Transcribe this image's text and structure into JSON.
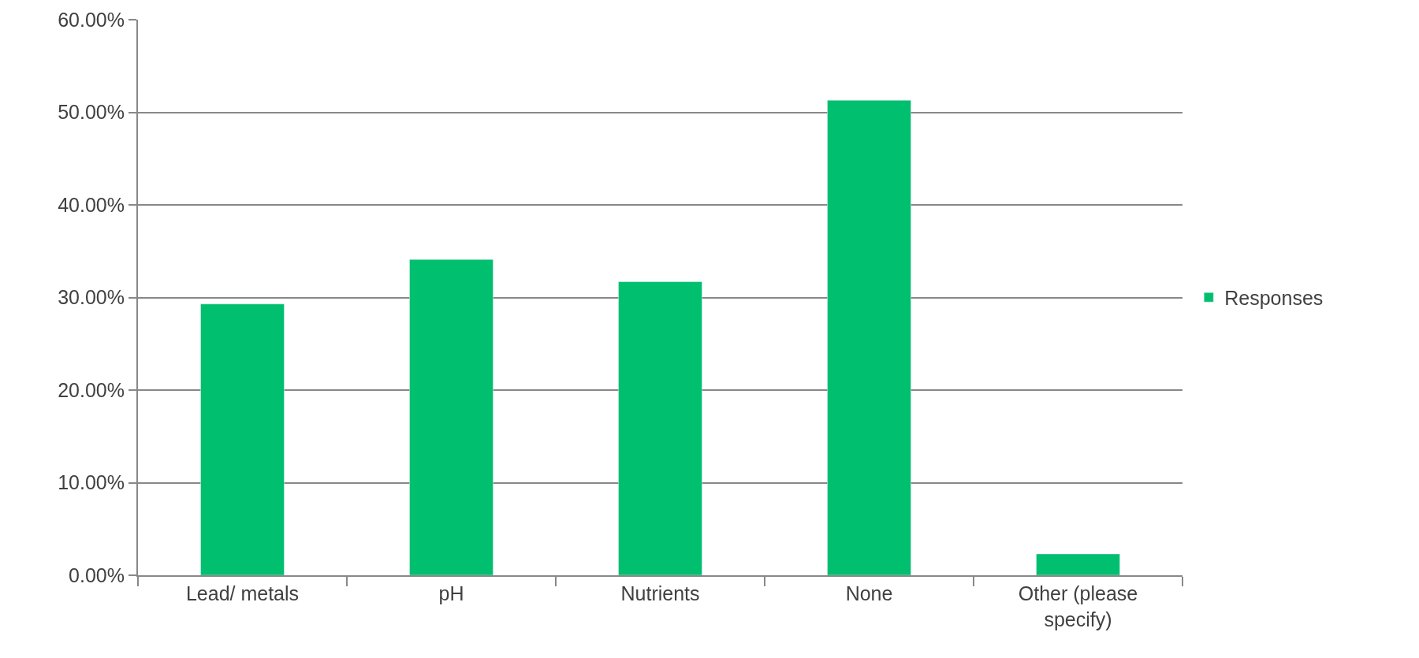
{
  "chart_data": {
    "type": "bar",
    "categories": [
      "Lead/ metals",
      "pH",
      "Nutrients",
      "None",
      "Other (please specify)"
    ],
    "series": [
      {
        "name": "Responses",
        "color": "#00bf6f",
        "values": [
          29.3,
          34.1,
          31.7,
          51.3,
          2.3
        ]
      }
    ],
    "ylim": [
      0,
      60
    ],
    "yticks": [
      {
        "value": 0,
        "label": "0.00%"
      },
      {
        "value": 10,
        "label": "10.00%"
      },
      {
        "value": 20,
        "label": "20.00%"
      },
      {
        "value": 30,
        "label": "30.00%"
      },
      {
        "value": 40,
        "label": "40.00%"
      },
      {
        "value": 50,
        "label": "50.00%"
      },
      {
        "value": 60,
        "label": "60.00%"
      }
    ],
    "grid": "y",
    "legend": "right"
  }
}
